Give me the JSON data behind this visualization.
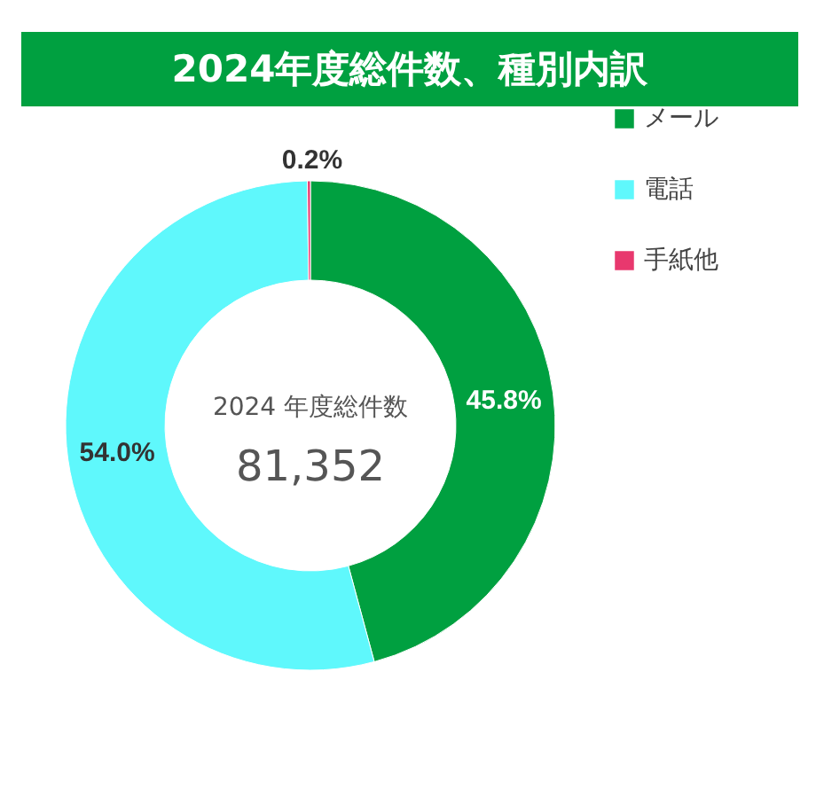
{
  "chart_data": {
    "type": "donut",
    "title": "2024年度総件数、種別内訳",
    "categories": [
      "メール",
      "電話",
      "手紙他"
    ],
    "values": [
      45.8,
      54.0,
      0.2
    ],
    "colors": [
      "#00a040",
      "#5ff8fc",
      "#e8386e"
    ],
    "value_labels": [
      "45.8%",
      "54.0%",
      "0.2%"
    ],
    "annotations": [
      "2024 年度総件数",
      "81,352"
    ],
    "legend": "right"
  }
}
